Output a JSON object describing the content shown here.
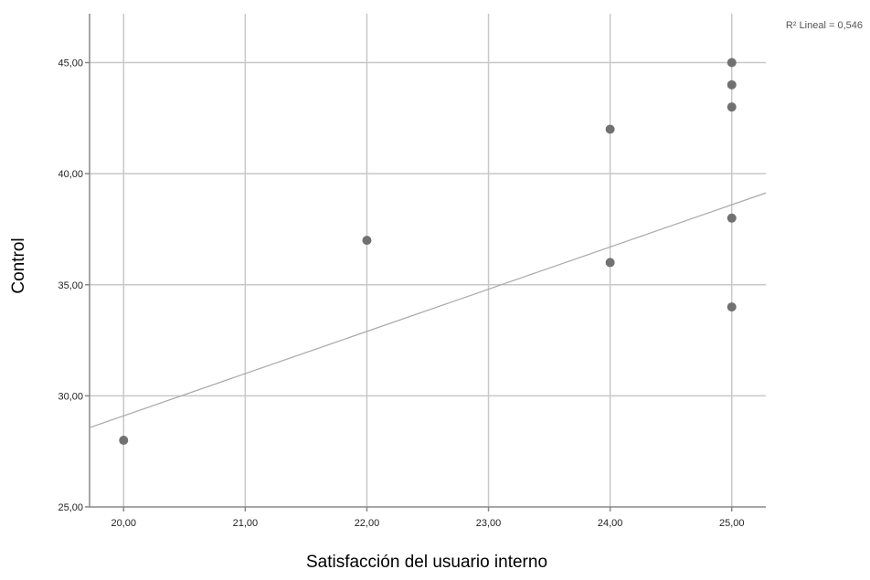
{
  "chart_data": {
    "type": "scatter",
    "xlabel": "Satisfacción del usuario interno",
    "ylabel": "Control",
    "xlim": [
      19.72,
      25.28
    ],
    "ylim": [
      25,
      47.2
    ],
    "x_ticks": [
      20,
      21,
      22,
      23,
      24,
      25
    ],
    "y_ticks": [
      25,
      30,
      35,
      40,
      45
    ],
    "x_tick_labels": [
      "20,00",
      "21,00",
      "22,00",
      "23,00",
      "24,00",
      "25,00"
    ],
    "y_tick_labels": [
      "25,00",
      "30,00",
      "35,00",
      "40,00",
      "45,00"
    ],
    "grid": true,
    "points": [
      {
        "x": 20,
        "y": 28
      },
      {
        "x": 22,
        "y": 37
      },
      {
        "x": 24,
        "y": 42
      },
      {
        "x": 24,
        "y": 36
      },
      {
        "x": 25,
        "y": 45
      },
      {
        "x": 25,
        "y": 44
      },
      {
        "x": 25,
        "y": 43
      },
      {
        "x": 25,
        "y": 38
      },
      {
        "x": 25,
        "y": 34
      }
    ],
    "fit_line": {
      "type": "linear",
      "label": "R² Lineal = 0,546",
      "intercept": -8.9,
      "slope": 1.9
    },
    "colors": {
      "points": "#717171",
      "fit_line": "#a8a8a8",
      "grid": "#c8c8c8",
      "axis": "#888888"
    }
  }
}
